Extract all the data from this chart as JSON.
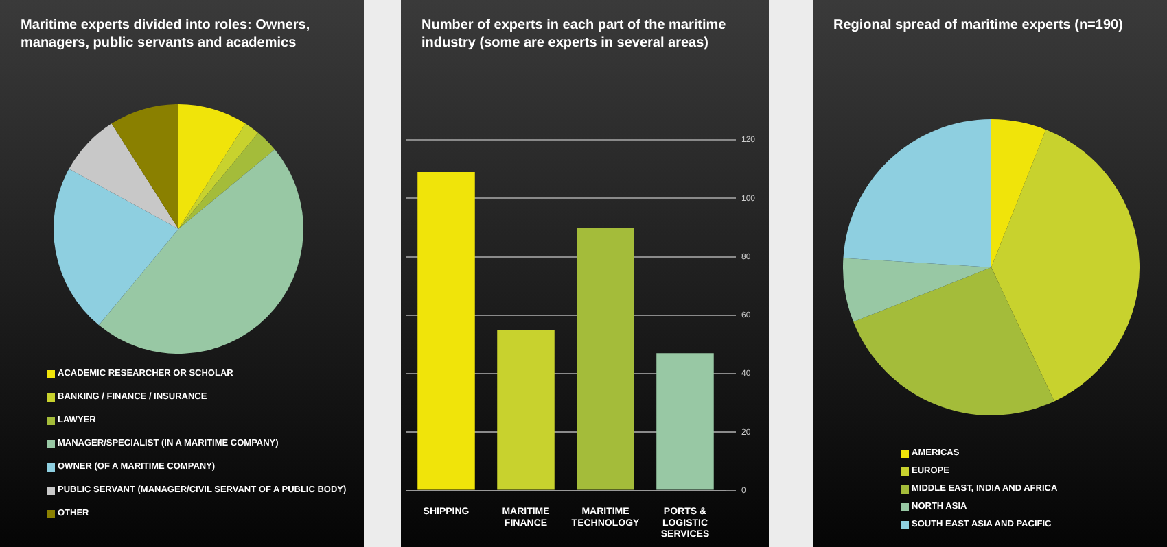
{
  "chart_data": [
    {
      "type": "pie",
      "title": "Maritime experts divided into roles: Owners, managers, public servants and academics",
      "categories": [
        "ACADEMIC RESEARCHER OR SCHOLAR",
        "BANKING / FINANCE / INSURANCE",
        "LAWYER",
        "MANAGER/SPECIALIST (IN A MARITIME COMPANY)",
        "OWNER (OF A MARITIME COMPANY)",
        "PUBLIC SERVANT (MANAGER/CIVIL SERVANT OF A PUBLIC BODY)",
        "OTHER"
      ],
      "values": [
        9,
        2,
        3,
        47,
        22,
        8,
        9
      ],
      "colors": [
        "#f0e40a",
        "#c8d22e",
        "#a4bc3a",
        "#98c8a4",
        "#8ecfe0",
        "#c8c8c8",
        "#8a8000"
      ],
      "legend": "bottom"
    },
    {
      "type": "bar",
      "title": "Number of experts in each part of the maritime industry (some are experts in several areas)",
      "categories": [
        "SHIPPING",
        "MARITIME FINANCE",
        "MARITIME TECHNOLOGY",
        "PORTS & LOGISTIC SERVICES"
      ],
      "values": [
        109,
        55,
        90,
        47
      ],
      "colors": [
        "#f0e40a",
        "#c8d22e",
        "#a4bc3a",
        "#98c8a4"
      ],
      "ylim": [
        0,
        120
      ],
      "yticks": [
        0,
        20,
        40,
        60,
        80,
        100,
        120
      ],
      "grid": "y"
    },
    {
      "type": "pie",
      "title": "Regional spread of maritime experts (n=190)",
      "categories": [
        "AMERICAS",
        "EUROPE",
        "MIDDLE EAST, INDIA AND AFRICA",
        "NORTH ASIA",
        "SOUTH EAST ASIA AND PACIFIC"
      ],
      "values": [
        6,
        37,
        26,
        7,
        24
      ],
      "colors": [
        "#f0e40a",
        "#c8d22e",
        "#a4bc3a",
        "#98c8a4",
        "#8ecfe0"
      ],
      "legend": "bottom"
    }
  ]
}
